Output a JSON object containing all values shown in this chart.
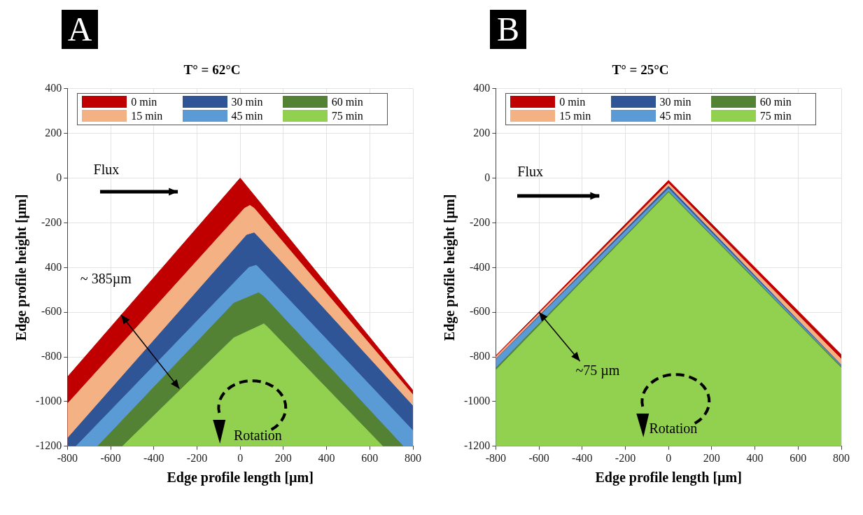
{
  "chart_data": [
    {
      "type": "area",
      "title": "T° = 62°C",
      "xlabel": "Edge profile length [µm]",
      "ylabel": "Edge profile height [µm]",
      "xlim": [
        -800,
        800
      ],
      "xticks": [
        -800,
        -600,
        -400,
        -200,
        0,
        200,
        400,
        600,
        800
      ],
      "ylim": [
        -1200,
        400
      ],
      "yticks": [
        -1200,
        -1000,
        -800,
        -600,
        {
          "value": -400,
          "label": "400"
        },
        -200,
        0,
        200,
        400
      ],
      "grid": true,
      "legend": "top",
      "annotations": [
        "A",
        "Flux",
        {
          "text": "~ 385µm",
          "x": -550,
          "y": -612
        },
        "Rotation"
      ],
      "series": [
        {
          "name": "0 min",
          "color": "#c00000",
          "x": [
            -800,
            0,
            800
          ],
          "values": [
            -890,
            0,
            -950
          ]
        },
        {
          "name": "15 min",
          "color": "#f4b183",
          "x": [
            -800,
            20,
            45,
            65,
            800
          ],
          "values": [
            -1010,
            -135,
            -122,
            -135,
            -970
          ]
        },
        {
          "name": "30 min",
          "color": "#2f5597",
          "x": [
            -800,
            30,
            65,
            85,
            800
          ],
          "values": [
            -1165,
            -255,
            -245,
            -265,
            -1020
          ]
        },
        {
          "name": "45 min",
          "color": "#5b9bd5",
          "x": [
            -760,
            40,
            75,
            95,
            800
          ],
          "values": [
            -1200,
            -400,
            -390,
            -410,
            -1130
          ]
        },
        {
          "name": "60 min",
          "color": "#548235",
          "x": [
            -660,
            -30,
            85,
            110,
            755
          ],
          "values": [
            -1200,
            -560,
            -513,
            -530,
            -1200
          ]
        },
        {
          "name": "75 min",
          "color": "#92d050",
          "x": [
            -545,
            -30,
            110,
            130,
            660
          ],
          "values": [
            -1200,
            -715,
            -652,
            -670,
            -1200
          ]
        }
      ]
    },
    {
      "type": "area",
      "title": "T° = 25°C",
      "xlabel": "Edge profile length [µm]",
      "ylabel": "Edge profile height [µm]",
      "xlim": [
        -800,
        800
      ],
      "xticks": [
        -800,
        -600,
        -400,
        -200,
        0,
        200,
        400,
        600,
        800
      ],
      "ylim": [
        -1200,
        400
      ],
      "yticks": [
        -1200,
        -1000,
        -800,
        -600,
        -400,
        -200,
        0,
        200,
        400
      ],
      "grid": true,
      "legend": "top",
      "annotations": [
        "B",
        "Flux",
        {
          "text": "~75 µm",
          "x": -600,
          "y": -599
        },
        "Rotation"
      ],
      "series": [
        {
          "name": "0 min",
          "color": "#c00000",
          "x": [
            -800,
            0,
            800
          ],
          "values": [
            -795,
            -10,
            -790
          ]
        },
        {
          "name": "15 min",
          "color": "#f4b183",
          "x": [
            -800,
            0,
            800
          ],
          "values": [
            -800,
            -24,
            -810
          ]
        },
        {
          "name": "30 min",
          "color": "#2f5597",
          "x": [
            -800,
            0,
            800
          ],
          "values": [
            -810,
            -37,
            -837
          ]
        },
        {
          "name": "45 min",
          "color": "#5b9bd5",
          "x": [
            -800,
            0,
            800
          ],
          "values": [
            -812,
            -47,
            -840
          ]
        },
        {
          "name": "60 min",
          "color": "#548235",
          "x": [
            -800,
            0,
            800
          ],
          "values": [
            -850,
            -60,
            -845
          ]
        },
        {
          "name": "75 min",
          "color": "#92d050",
          "x": [
            -800,
            0,
            800
          ],
          "values": [
            -860,
            -65,
            -850
          ]
        }
      ]
    }
  ]
}
